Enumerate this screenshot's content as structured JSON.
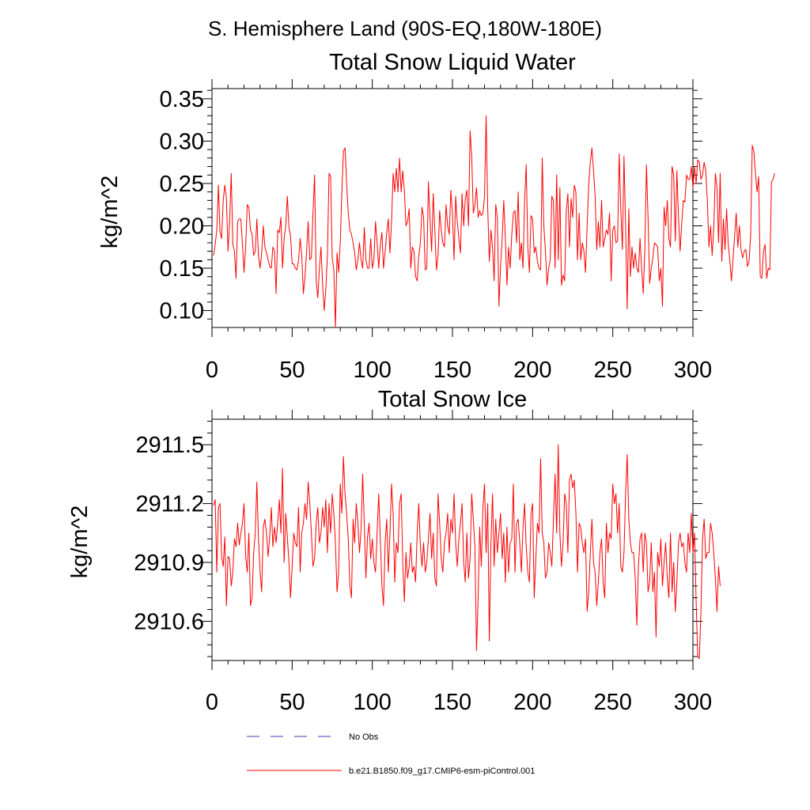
{
  "page_title": "S. Hemisphere Land (90S-EQ,180W-180E)",
  "colors": {
    "series": "#ff0000",
    "obs": "#3b3bb0",
    "axis": "#000000"
  },
  "legend": [
    {
      "label": "No Obs",
      "style": "dashed",
      "color": "#3b3bb0"
    },
    {
      "label": "b.e21.B1850.f09_g17.CMIP6-esm-piControl.001",
      "style": "solid",
      "color": "#ff0000"
    }
  ],
  "chart_data": [
    {
      "type": "line",
      "title": "Total Snow Liquid Water",
      "xlabel": "",
      "ylabel": "kg/m^2",
      "xlim": [
        0,
        300
      ],
      "ylim": [
        0.08,
        0.362
      ],
      "xticks": [
        0,
        50,
        100,
        150,
        200,
        250,
        300
      ],
      "xtick_labels": [
        "0",
        "50",
        "100",
        "150",
        "200",
        "250",
        "300"
      ],
      "yticks": [
        0.1,
        0.15,
        0.2,
        0.25,
        0.3,
        0.35
      ],
      "ytick_labels": [
        "0.10",
        "0.15",
        "0.20",
        "0.25",
        "0.30",
        "0.35"
      ],
      "series": [
        {
          "name": "b.e21.B1850.f09_g17.CMIP6-esm-piControl.001",
          "x_start": 1,
          "x_step": 1,
          "values": [
            0.165,
            0.178,
            0.195,
            0.248,
            0.193,
            0.185,
            0.23,
            0.248,
            0.232,
            0.17,
            0.205,
            0.262,
            0.178,
            0.17,
            0.138,
            0.205,
            0.208,
            0.208,
            0.178,
            0.145,
            0.175,
            0.225,
            0.222,
            0.195,
            0.19,
            0.165,
            0.17,
            0.208,
            0.165,
            0.15,
            0.168,
            0.2,
            0.175,
            0.168,
            0.16,
            0.152,
            0.15,
            0.175,
            0.17,
            0.12,
            0.195,
            0.192,
            0.21,
            0.15,
            0.185,
            0.2,
            0.235,
            0.198,
            0.188,
            0.155,
            0.155,
            0.15,
            0.148,
            0.16,
            0.185,
            0.165,
            0.12,
            0.14,
            0.17,
            0.205,
            0.16,
            0.162,
            0.215,
            0.26,
            0.135,
            0.115,
            0.15,
            0.175,
            0.13,
            0.1,
            0.125,
            0.165,
            0.262,
            0.258,
            0.162,
            0.148,
            0.08,
            0.168,
            0.145,
            0.18,
            0.24,
            0.288,
            0.292,
            0.25,
            0.215,
            0.195,
            0.19,
            0.18,
            0.168,
            0.148,
            0.16,
            0.18,
            0.16,
            0.15,
            0.198,
            0.16,
            0.15,
            0.15,
            0.185,
            0.15,
            0.16,
            0.205,
            0.18,
            0.15,
            0.178,
            0.192,
            0.15,
            0.17,
            0.192,
            0.208,
            0.168,
            0.205,
            0.262,
            0.24,
            0.268,
            0.24,
            0.28,
            0.24,
            0.265,
            0.242,
            0.2,
            0.205,
            0.22,
            0.15,
            0.175,
            0.17,
            0.14,
            0.135,
            0.165,
            0.18,
            0.222,
            0.21,
            0.148,
            0.15,
            0.252,
            0.208,
            0.17,
            0.238,
            0.195,
            0.148,
            0.165,
            0.218,
            0.195,
            0.18,
            0.175,
            0.225,
            0.2,
            0.19,
            0.242,
            0.215,
            0.16,
            0.235,
            0.205,
            0.185,
            0.168,
            0.238,
            0.2,
            0.232,
            0.242,
            0.2,
            0.312,
            0.282,
            0.215,
            0.225,
            0.245,
            0.21,
            0.218,
            0.212,
            0.215,
            0.235,
            0.33,
            0.22,
            0.158,
            0.195,
            0.175,
            0.135,
            0.225,
            0.21,
            0.105,
            0.152,
            0.185,
            0.23,
            0.185,
            0.13,
            0.175,
            0.15,
            0.19,
            0.215,
            0.218,
            0.18,
            0.24,
            0.16,
            0.18,
            0.15,
            0.23,
            0.272,
            0.175,
            0.145,
            0.212,
            0.208,
            0.168,
            0.175,
            0.158,
            0.15,
            0.148,
            0.28,
            0.2,
            0.17,
            0.13,
            0.15,
            0.16,
            0.235,
            0.23,
            0.15,
            0.26,
            0.16,
            0.245,
            0.13,
            0.142,
            0.135,
            0.218,
            0.238,
            0.175,
            0.232,
            0.21,
            0.248,
            0.24,
            0.16,
            0.215,
            0.16,
            0.18,
            0.17,
            0.145,
            0.2,
            0.25,
            0.275,
            0.292,
            0.265,
            0.235,
            0.172,
            0.205,
            0.175,
            0.23,
            0.175,
            0.185,
            0.195,
            0.19,
            0.215,
            0.135,
            0.195,
            0.2,
            0.18,
            0.182,
            0.285,
            0.22,
            0.172,
            0.282,
            0.2,
            0.102,
            0.22,
            0.14,
            0.175,
            0.15,
            0.168,
            0.15,
            0.145,
            0.185,
            0.15,
            0.12,
            0.172,
            0.272,
            0.21,
            0.132,
            0.15,
            0.162,
            0.18,
            0.178,
            0.175,
            0.135,
            0.15,
            0.105,
            0.222,
            0.2,
            0.23,
            0.185,
            0.175,
            0.27,
            0.26,
            0.182,
            0.265,
            0.21,
            0.17,
            0.202,
            0.23,
            0.228,
            0.26,
            0.255,
            0.255,
            0.27,
            0.245,
            0.27,
            0.25,
            0.278,
            0.275,
            0.255,
            0.26,
            0.275,
            0.265,
            0.23,
            0.175,
            0.2,
            0.165,
            0.198,
            0.262,
            0.245,
            0.18,
            0.262,
            0.158,
            0.208,
            0.172,
            0.22,
            0.178,
            0.16,
            0.135,
            0.16,
            0.188,
            0.215,
            0.175,
            0.2,
            0.172,
            0.162,
            0.17,
            0.172,
            0.152,
            0.158,
            0.188,
            0.295,
            0.288,
            0.262,
            0.24,
            0.258,
            0.14,
            0.138,
            0.17,
            0.178,
            0.138,
            0.15,
            0.148,
            0.252,
            0.255,
            0.262
          ]
        }
      ]
    },
    {
      "type": "line",
      "title": "Total Snow Ice",
      "xlabel": "",
      "ylabel": "kg/m^2",
      "xlim": [
        0,
        300
      ],
      "ylim": [
        2910.4,
        2911.63
      ],
      "xticks": [
        0,
        50,
        100,
        150,
        200,
        250,
        300
      ],
      "xtick_labels": [
        "0",
        "50",
        "100",
        "150",
        "200",
        "250",
        "300"
      ],
      "yticks": [
        2910.6,
        2910.9,
        2911.2,
        2911.5
      ],
      "ytick_labels": [
        "2910.6",
        "2910.9",
        "2911.2",
        "2911.5"
      ],
      "series": [
        {
          "name": "b.e21.B1850.f09_g17.CMIP6-esm-piControl.001",
          "x_start": 1,
          "x_step": 1,
          "values": [
            2911.19,
            2911.22,
            2910.85,
            2911.18,
            2911.2,
            2910.93,
            2910.88,
            2911.03,
            2910.68,
            2910.93,
            2910.92,
            2910.78,
            2910.85,
            2911.02,
            2910.98,
            2911.1,
            2910.99,
            2911.05,
            2911.1,
            2911.2,
            2910.93,
            2910.85,
            2911.05,
            2910.68,
            2910.72,
            2910.95,
            2911.05,
            2911.31,
            2911.02,
            2910.85,
            2910.75,
            2911.08,
            2911.12,
            2911.05,
            2910.93,
            2911.03,
            2911.18,
            2910.98,
            2911.08,
            2911.0,
            2911.1,
            2911.22,
            2911.05,
            2911.38,
            2910.9,
            2911.15,
            2911.03,
            2910.9,
            2910.72,
            2910.88,
            2911.05,
            2911.0,
            2910.98,
            2911.18,
            2910.85,
            2911.05,
            2911.1,
            2911.2,
            2911.12,
            2911.31,
            2911.2,
            2911.05,
            2910.88,
            2910.92,
            2911.1,
            2911.18,
            2911.0,
            2911.05,
            2911.18,
            2911.08,
            2911.22,
            2910.95,
            2911.2,
            2911.05,
            2911.25,
            2911.15,
            2911.0,
            2910.75,
            2910.85,
            2911.3,
            2911.15,
            2911.44,
            2911.25,
            2911.15,
            2911.02,
            2910.78,
            2910.72,
            2911.12,
            2911.0,
            2911.2,
            2911.1,
            2910.95,
            2911.07,
            2911.35,
            2911.1,
            2910.82,
            2911.03,
            2911.1,
            2910.92,
            2911.02,
            2910.9,
            2910.85,
            2911.05,
            2911.25,
            2911.02,
            2910.78,
            2910.68,
            2911.0,
            2911.12,
            2910.85,
            2911.05,
            2911.3,
            2911.15,
            2910.8,
            2911.0,
            2910.95,
            2911.2,
            2911.25,
            2910.9,
            2910.7,
            2910.95,
            2910.82,
            2910.88,
            2911.0,
            2910.85,
            2910.88,
            2910.8,
            2911.05,
            2911.2,
            2910.98,
            2910.88,
            2911.0,
            2910.85,
            2910.9,
            2911.02,
            2911.15,
            2910.92,
            2911.05,
            2910.82,
            2910.78,
            2911.25,
            2911.1,
            2910.92,
            2910.85,
            2911.0,
            2911.05,
            2911.15,
            2910.95,
            2911.12,
            2911.05,
            2911.25,
            2911.0,
            2910.88,
            2911.02,
            2911.1,
            2911.2,
            2910.9,
            2910.8,
            2911.05,
            2910.82,
            2910.92,
            2911.25,
            2911.12,
            2910.98,
            2910.45,
            2910.72,
            2911.08,
            2910.88,
            2911.18,
            2911.3,
            2910.95,
            2911.2,
            2910.5,
            2911.0,
            2911.25,
            2910.88,
            2911.12,
            2910.95,
            2911.05,
            2911.15,
            2910.92,
            2911.05,
            2910.8,
            2911.08,
            2910.85,
            2911.0,
            2911.02,
            2911.3,
            2910.85,
            2911.1,
            2911.12,
            2911.0,
            2910.85,
            2911.08,
            2911.2,
            2910.98,
            2910.85,
            2910.8,
            2911.15,
            2911.2,
            2910.72,
            2910.92,
            2911.1,
            2911.05,
            2911.43,
            2911.05,
            2911.0,
            2910.82,
            2910.85,
            2911.0,
            2910.95,
            2910.88,
            2911.12,
            2911.35,
            2911.05,
            2911.5,
            2911.05,
            2910.88,
            2911.0,
            2911.25,
            2911.2,
            2910.95,
            2911.32,
            2911.35,
            2911.28,
            2911.32,
            2911.15,
            2910.85,
            2911.1,
            2911.08,
            2911.0,
            2910.95,
            2911.02,
            2910.65,
            2910.75,
            2910.95,
            2911.12,
            2910.9,
            2910.85,
            2910.68,
            2910.8,
            2910.95,
            2911.02,
            2910.8,
            2910.72,
            2911.1,
            2910.95,
            2911.05,
            2911.02,
            2911.3,
            2911.2,
            2911.25,
            2911.05,
            2911.2,
            2910.88,
            2910.85,
            2910.95,
            2911.25,
            2911.45,
            2911.12,
            2911.0,
            2910.95,
            2910.95,
            2910.82,
            2910.58,
            2910.88,
            2911.02,
            2911.05,
            2910.85,
            2911.05,
            2911.0,
            2910.75,
            2910.8,
            2911.0,
            2910.75,
            2910.85,
            2910.52,
            2910.95,
            2910.88,
            2911.02,
            2910.78,
            2910.9,
            2911.0,
            2910.82,
            2910.72,
            2911.05,
            2910.75,
            2910.9,
            2910.65,
            2910.8,
            2911.0,
            2911.05,
            2910.98,
            2911.0,
            2910.9,
            2910.85,
            2911.05,
            2910.95,
            2911.15,
            2910.95,
            2911.05,
            2910.7,
            2910.42,
            2910.41,
            2910.65,
            2911.02,
            2911.12,
            2910.92,
            2910.95,
            2910.95,
            2911.1,
            2911.05,
            2910.95,
            2910.82,
            2910.65,
            2910.88,
            2910.78
          ]
        }
      ]
    }
  ]
}
